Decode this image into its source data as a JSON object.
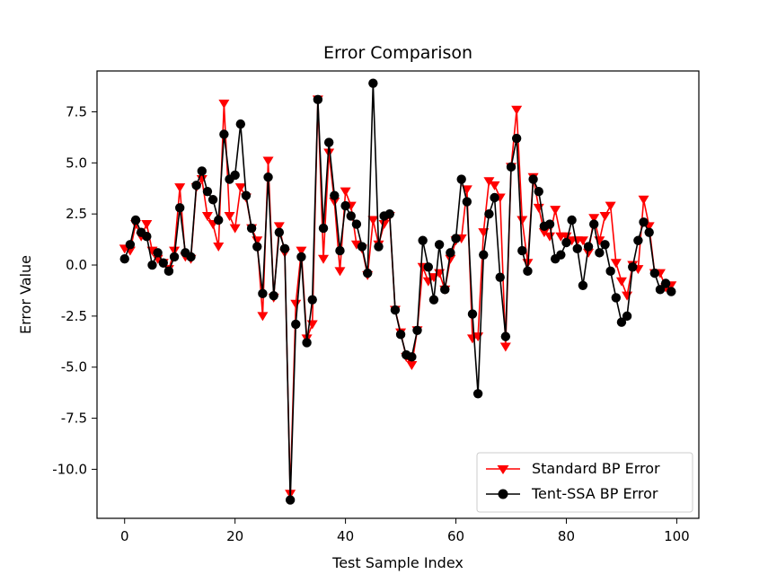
{
  "chart_data": {
    "type": "line",
    "title": "Error Comparison",
    "xlabel": "Test Sample Index",
    "ylabel": "Error Value",
    "xlim": [
      -5,
      104
    ],
    "ylim": [
      -12.4,
      9.5
    ],
    "xticks": [
      0,
      20,
      40,
      60,
      80,
      100
    ],
    "yticks": [
      7.5,
      5.0,
      2.5,
      0.0,
      -2.5,
      -5.0,
      -7.5,
      -10.0
    ],
    "ytick_labels": [
      "7.5",
      "5.0",
      "2.5",
      "0.0",
      "-2.5",
      "-5.0",
      "-7.5",
      "-10.0"
    ],
    "grid": false,
    "legend_position": "lower-right",
    "series": [
      {
        "name": "Standard BP Error",
        "color": "#ff0000",
        "marker": "triangle-down",
        "values": [
          0.8,
          0.7,
          2.0,
          1.4,
          2.0,
          0.7,
          0.3,
          0.1,
          -0.2,
          0.7,
          3.8,
          0.4,
          0.3,
          3.8,
          4.2,
          2.4,
          2.0,
          0.9,
          7.9,
          2.4,
          1.8,
          3.8,
          3.3,
          1.8,
          1.2,
          -2.5,
          5.1,
          -1.6,
          1.9,
          0.6,
          -11.2,
          -1.9,
          0.7,
          -3.6,
          -2.9,
          8.1,
          0.3,
          5.5,
          3.1,
          -0.3,
          3.6,
          2.9,
          1.0,
          0.8,
          -0.5,
          2.2,
          1.0,
          2.0,
          2.4,
          -2.2,
          -3.3,
          -4.5,
          -4.9,
          -3.2,
          -0.1,
          -0.8,
          -0.6,
          -0.4,
          -1.2,
          0.3,
          1.2,
          1.3,
          3.7,
          -3.6,
          -3.5,
          1.6,
          4.1,
          3.9,
          3.3,
          -4.0,
          4.8,
          7.6,
          2.2,
          0.1,
          4.3,
          2.8,
          1.6,
          1.4,
          2.7,
          1.4,
          1.4,
          1.2,
          1.2,
          1.2,
          0.6,
          2.3,
          1.2,
          2.4,
          2.9,
          0.1,
          -0.8,
          -1.5,
          0.0,
          -0.2,
          3.2,
          1.9,
          -0.4,
          -0.4,
          -1.1,
          -1.0
        ]
      },
      {
        "name": "Tent-SSA BP Error",
        "color": "#000000",
        "marker": "circle",
        "values": [
          0.3,
          1.0,
          2.2,
          1.6,
          1.4,
          0.0,
          0.6,
          0.1,
          -0.3,
          0.4,
          2.8,
          0.6,
          0.4,
          3.9,
          4.6,
          3.6,
          3.2,
          2.2,
          6.4,
          4.2,
          4.4,
          6.9,
          3.4,
          1.8,
          0.9,
          -1.4,
          4.3,
          -1.5,
          1.6,
          0.8,
          -11.5,
          -2.9,
          0.4,
          -3.8,
          -1.7,
          8.1,
          1.8,
          6.0,
          3.4,
          0.7,
          2.9,
          2.4,
          2.0,
          0.9,
          -0.4,
          8.9,
          0.9,
          2.4,
          2.5,
          -2.2,
          -3.4,
          -4.4,
          -4.5,
          -3.2,
          1.2,
          -0.1,
          -1.7,
          1.0,
          -1.2,
          0.6,
          1.3,
          4.2,
          3.1,
          -2.4,
          -6.3,
          0.5,
          2.5,
          3.3,
          -0.6,
          -3.5,
          4.8,
          6.2,
          0.7,
          -0.3,
          4.2,
          3.6,
          1.9,
          2.0,
          0.3,
          0.5,
          1.1,
          2.2,
          0.8,
          -1.0,
          0.9,
          2.0,
          0.6,
          1.0,
          -0.3,
          -1.6,
          -2.8,
          -2.5,
          -0.1,
          1.2,
          2.1,
          1.6,
          -0.4,
          -1.2,
          -0.9,
          -1.3
        ]
      }
    ]
  }
}
